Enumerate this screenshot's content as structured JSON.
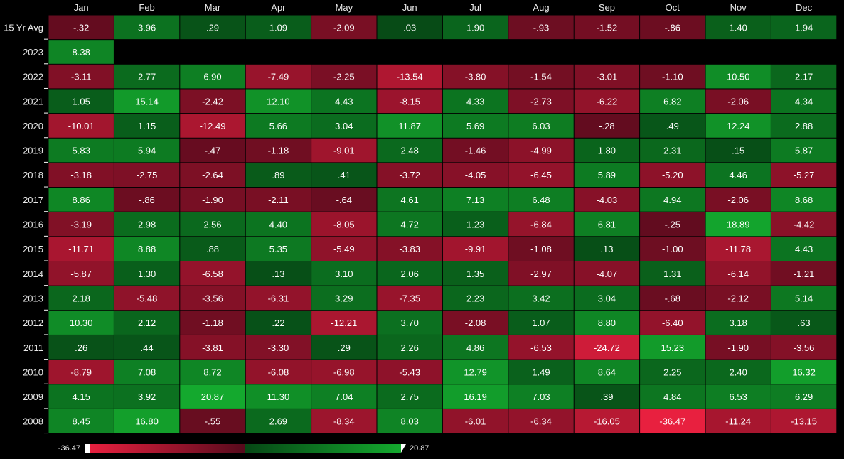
{
  "chart_data": {
    "type": "heatmap",
    "x_categories": [
      "Jan",
      "Feb",
      "Mar",
      "Apr",
      "May",
      "Jun",
      "Jul",
      "Aug",
      "Sep",
      "Oct",
      "Nov",
      "Dec"
    ],
    "y_categories": [
      "15 Yr Avg",
      "2023",
      "2022",
      "2021",
      "2020",
      "2019",
      "2018",
      "2017",
      "2016",
      "2015",
      "2014",
      "2013",
      "2012",
      "2011",
      "2010",
      "2009",
      "2008"
    ],
    "values": [
      [
        -0.32,
        3.96,
        0.29,
        1.09,
        -2.09,
        0.03,
        1.9,
        -0.93,
        -1.52,
        -0.86,
        1.4,
        1.94
      ],
      [
        8.38,
        null,
        null,
        null,
        null,
        null,
        null,
        null,
        null,
        null,
        null,
        null
      ],
      [
        -3.11,
        2.77,
        6.9,
        -7.49,
        -2.25,
        -13.54,
        -3.8,
        -1.54,
        -3.01,
        -1.1,
        10.5,
        2.17
      ],
      [
        1.05,
        15.14,
        -2.42,
        12.1,
        4.43,
        -8.15,
        4.33,
        -2.73,
        -6.22,
        6.82,
        -2.06,
        4.34
      ],
      [
        -10.01,
        1.15,
        -12.49,
        5.66,
        3.04,
        11.87,
        5.69,
        6.03,
        -0.28,
        0.49,
        12.24,
        2.88
      ],
      [
        5.83,
        5.94,
        -0.47,
        -1.18,
        -9.01,
        2.48,
        -1.46,
        -4.99,
        1.8,
        2.31,
        0.15,
        5.87
      ],
      [
        -3.18,
        -2.75,
        -2.64,
        0.89,
        0.41,
        -3.72,
        -4.05,
        -6.45,
        5.89,
        -5.2,
        4.46,
        -5.27
      ],
      [
        8.86,
        -0.86,
        -1.9,
        -2.11,
        -0.64,
        4.61,
        7.13,
        6.48,
        -4.03,
        4.94,
        -2.06,
        8.68
      ],
      [
        -3.19,
        2.98,
        2.56,
        4.4,
        -8.05,
        4.72,
        1.23,
        -6.84,
        6.81,
        -0.25,
        18.89,
        -4.42
      ],
      [
        -11.71,
        8.88,
        0.88,
        5.35,
        -5.49,
        -3.83,
        -9.91,
        -1.08,
        0.13,
        -1.0,
        -11.78,
        4.43
      ],
      [
        -5.87,
        1.3,
        -6.58,
        0.13,
        3.1,
        2.06,
        1.35,
        -2.97,
        -4.07,
        1.31,
        -6.14,
        -1.21
      ],
      [
        2.18,
        -5.48,
        -3.56,
        -6.31,
        3.29,
        -7.35,
        2.23,
        3.42,
        3.04,
        -0.68,
        -2.12,
        5.14
      ],
      [
        10.3,
        2.12,
        -1.18,
        0.22,
        -12.21,
        3.7,
        -2.08,
        1.07,
        8.8,
        -6.4,
        3.18,
        0.63
      ],
      [
        0.26,
        0.44,
        -3.81,
        -3.3,
        0.29,
        2.26,
        4.86,
        -6.53,
        -24.72,
        15.23,
        -1.9,
        -3.56
      ],
      [
        -8.79,
        7.08,
        8.72,
        -6.08,
        -6.98,
        -5.43,
        12.79,
        1.49,
        8.64,
        2.25,
        2.4,
        16.32
      ],
      [
        4.15,
        3.92,
        20.87,
        11.3,
        7.04,
        2.75,
        16.19,
        7.03,
        0.39,
        4.84,
        6.53,
        6.29
      ],
      [
        8.45,
        16.8,
        -0.55,
        2.69,
        -8.34,
        8.03,
        -6.01,
        -6.34,
        -16.05,
        -36.47,
        -11.24,
        -13.15
      ]
    ],
    "labels": [
      [
        "-.32",
        "3.96",
        ".29",
        "1.09",
        "-2.09",
        ".03",
        "1.90",
        "-.93",
        "-1.52",
        "-.86",
        "1.40",
        "1.94"
      ],
      [
        "8.38",
        "",
        "",
        "",
        "",
        "",
        "",
        "",
        "",
        "",
        "",
        ""
      ],
      [
        "-3.11",
        "2.77",
        "6.90",
        "-7.49",
        "-2.25",
        "-13.54",
        "-3.80",
        "-1.54",
        "-3.01",
        "-1.10",
        "10.50",
        "2.17"
      ],
      [
        "1.05",
        "15.14",
        "-2.42",
        "12.10",
        "4.43",
        "-8.15",
        "4.33",
        "-2.73",
        "-6.22",
        "6.82",
        "-2.06",
        "4.34"
      ],
      [
        "-10.01",
        "1.15",
        "-12.49",
        "5.66",
        "3.04",
        "11.87",
        "5.69",
        "6.03",
        "-.28",
        ".49",
        "12.24",
        "2.88"
      ],
      [
        "5.83",
        "5.94",
        "-.47",
        "-1.18",
        "-9.01",
        "2.48",
        "-1.46",
        "-4.99",
        "1.80",
        "2.31",
        ".15",
        "5.87"
      ],
      [
        "-3.18",
        "-2.75",
        "-2.64",
        ".89",
        ".41",
        "-3.72",
        "-4.05",
        "-6.45",
        "5.89",
        "-5.20",
        "4.46",
        "-5.27"
      ],
      [
        "8.86",
        "-.86",
        "-1.90",
        "-2.11",
        "-.64",
        "4.61",
        "7.13",
        "6.48",
        "-4.03",
        "4.94",
        "-2.06",
        "8.68"
      ],
      [
        "-3.19",
        "2.98",
        "2.56",
        "4.40",
        "-8.05",
        "4.72",
        "1.23",
        "-6.84",
        "6.81",
        "-.25",
        "18.89",
        "-4.42"
      ],
      [
        "-11.71",
        "8.88",
        ".88",
        "5.35",
        "-5.49",
        "-3.83",
        "-9.91",
        "-1.08",
        ".13",
        "-1.00",
        "-11.78",
        "4.43"
      ],
      [
        "-5.87",
        "1.30",
        "-6.58",
        ".13",
        "3.10",
        "2.06",
        "1.35",
        "-2.97",
        "-4.07",
        "1.31",
        "-6.14",
        "-1.21"
      ],
      [
        "2.18",
        "-5.48",
        "-3.56",
        "-6.31",
        "3.29",
        "-7.35",
        "2.23",
        "3.42",
        "3.04",
        "-.68",
        "-2.12",
        "5.14"
      ],
      [
        "10.30",
        "2.12",
        "-1.18",
        ".22",
        "-12.21",
        "3.70",
        "-2.08",
        "1.07",
        "8.80",
        "-6.40",
        "3.18",
        ".63"
      ],
      [
        ".26",
        ".44",
        "-3.81",
        "-3.30",
        ".29",
        "2.26",
        "4.86",
        "-6.53",
        "-24.72",
        "15.23",
        "-1.90",
        "-3.56"
      ],
      [
        "-8.79",
        "7.08",
        "8.72",
        "-6.08",
        "-6.98",
        "-5.43",
        "12.79",
        "1.49",
        "8.64",
        "2.25",
        "2.40",
        "16.32"
      ],
      [
        "4.15",
        "3.92",
        "20.87",
        "11.30",
        "7.04",
        "2.75",
        "16.19",
        "7.03",
        ".39",
        "4.84",
        "6.53",
        "6.29"
      ],
      [
        "8.45",
        "16.80",
        "-.55",
        "2.69",
        "-8.34",
        "8.03",
        "-6.01",
        "-6.34",
        "-16.05",
        "-36.47",
        "-11.24",
        "-13.15"
      ]
    ],
    "color_scale": {
      "min": -36.47,
      "max": 20.87,
      "min_label": "-36.47",
      "max_label": "20.87",
      "min_color": "#e8203f",
      "mid_neg_color": "#560a1c",
      "mid_pos_color": "#064715",
      "max_color": "#14a92e"
    },
    "legend": "bottom-left"
  }
}
